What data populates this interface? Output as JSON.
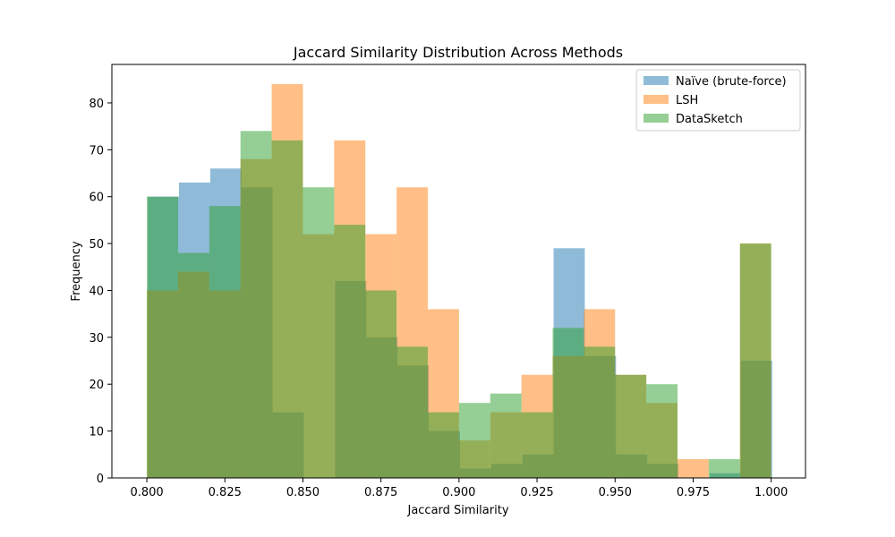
{
  "chart_data": {
    "type": "bar",
    "title": "Jaccard Similarity Distribution Across Methods",
    "xlabel": "Jaccard Similarity",
    "ylabel": "Frequency",
    "xlim": [
      0.7888,
      1.011
    ],
    "ylim": [
      0,
      88.2
    ],
    "xticks": [
      "0.800",
      "0.825",
      "0.850",
      "0.875",
      "0.900",
      "0.925",
      "0.950",
      "0.975",
      "1.000"
    ],
    "xtick_values": [
      0.8,
      0.825,
      0.85,
      0.875,
      0.9,
      0.925,
      0.95,
      0.975,
      1.0
    ],
    "yticks": [
      "0",
      "10",
      "20",
      "30",
      "40",
      "50",
      "60",
      "70",
      "80"
    ],
    "ytick_values": [
      0,
      10,
      20,
      30,
      40,
      50,
      60,
      70,
      80
    ],
    "legend_position": "top-right",
    "grid": false,
    "series": [
      {
        "name": "Naïve (brute-force)",
        "color": "#1f77b4",
        "opacity": 0.5,
        "bin_edges": [
          0.8003,
          0.8103,
          0.8203,
          0.8303,
          0.8403,
          0.8503,
          0.8603,
          0.8703,
          0.8803,
          0.8903,
          0.9003,
          0.9103,
          0.9203,
          0.9303,
          0.9403,
          0.9503,
          0.9603,
          0.9703,
          0.9803,
          0.9903,
          1.0003
        ],
        "values": [
          60,
          63,
          66,
          62,
          14,
          0,
          42,
          30,
          24,
          10,
          2,
          3,
          5,
          49,
          26,
          5,
          3,
          0,
          1,
          25
        ]
      },
      {
        "name": "LSH",
        "color": "#ff7f0e",
        "opacity": 0.5,
        "bin_edges": [
          0.8,
          0.81,
          0.82,
          0.83,
          0.84,
          0.85,
          0.86,
          0.87,
          0.88,
          0.89,
          0.9,
          0.91,
          0.92,
          0.93,
          0.94,
          0.95,
          0.96,
          0.97,
          0.98,
          0.99,
          1.0
        ],
        "values": [
          40,
          44,
          40,
          68,
          84,
          52,
          72,
          52,
          62,
          36,
          8,
          14,
          22,
          26,
          36,
          22,
          16,
          4,
          0,
          50
        ]
      },
      {
        "name": "DataSketch",
        "color": "#2ca02c",
        "opacity": 0.5,
        "bin_edges": [
          0.8,
          0.81,
          0.82,
          0.83,
          0.84,
          0.85,
          0.86,
          0.87,
          0.88,
          0.89,
          0.9,
          0.91,
          0.92,
          0.93,
          0.94,
          0.95,
          0.96,
          0.97,
          0.98,
          0.99,
          1.0
        ],
        "values": [
          60,
          48,
          58,
          74,
          72,
          62,
          54,
          40,
          28,
          14,
          16,
          18,
          14,
          32,
          28,
          22,
          20,
          0,
          4,
          50
        ]
      }
    ]
  }
}
